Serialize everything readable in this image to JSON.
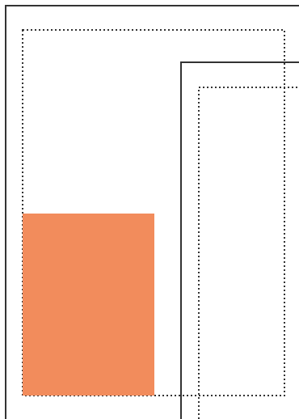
{
  "colors": {
    "background": "#ffffff",
    "solid_frame_stroke": "#333333",
    "dotted_frame_stroke": "#333333",
    "filled_block": "#f28c5c"
  },
  "shapes": [
    {
      "name": "outer-solid-frame",
      "style": "solid"
    },
    {
      "name": "outer-dotted-frame",
      "style": "dotted"
    },
    {
      "name": "inner-solid-frame",
      "style": "solid"
    },
    {
      "name": "inner-dotted-frame",
      "style": "dotted"
    },
    {
      "name": "orange-block",
      "style": "filled"
    }
  ]
}
